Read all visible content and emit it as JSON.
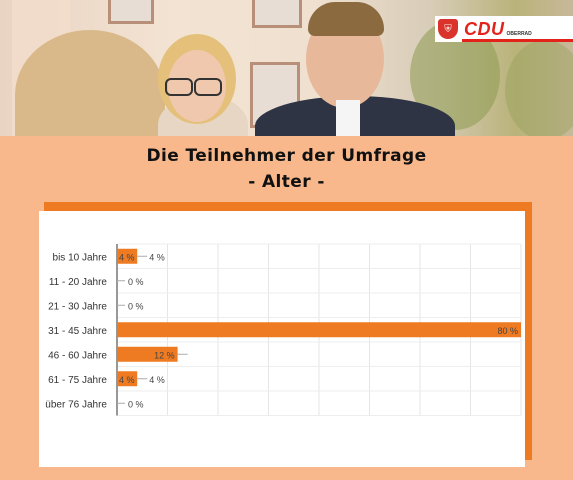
{
  "header": {
    "logo_text": "CDU",
    "logo_subtext": "OBERRAD"
  },
  "heading": {
    "line1": "Die Teilnehmer der Umfrage",
    "line2": "- Alter -"
  },
  "colors": {
    "background": "#f8b88b",
    "bar": "#ee7b21",
    "brand_red": "#e2231a"
  },
  "chart_data": {
    "type": "bar",
    "orientation": "horizontal",
    "categories": [
      "bis 10 Jahre",
      "11 - 20 Jahre",
      "21 - 30 Jahre",
      "31 - 45 Jahre",
      "46 - 60 Jahre",
      "61 - 75 Jahre",
      "über 76 Jahre"
    ],
    "values": [
      4,
      0,
      0,
      80,
      12,
      4,
      0
    ],
    "labels": [
      "4 %",
      "0 %",
      "0 %",
      "80 %",
      "12 %",
      "4 %",
      "0 %"
    ],
    "xlim": [
      0,
      80
    ],
    "grid": true
  }
}
